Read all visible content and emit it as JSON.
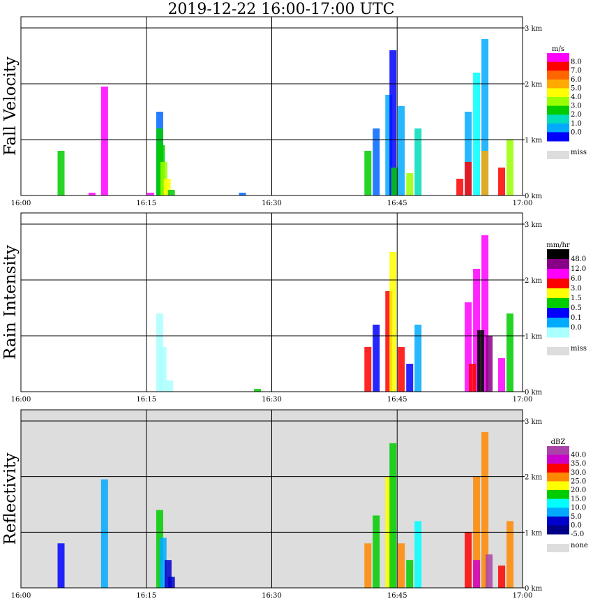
{
  "title": "2019-12-22   16:00-17:00 UTC",
  "chart_data": [
    {
      "type": "heatmap",
      "ylabel": "Fall Velocity",
      "units": "m/s",
      "background": "#ffffff",
      "x_ticks": [
        "16:00",
        "16:15",
        "16:30",
        "16:45",
        "17:00"
      ],
      "y_ticks": [
        "0 km",
        "1 km",
        "2 km",
        "3 km"
      ],
      "xlim": [
        0,
        60
      ],
      "ylim": [
        0,
        3.2
      ],
      "legend": {
        "labels": [
          "8.0",
          "7.0",
          "6.0",
          "5.0",
          "4.0",
          "3.0",
          "2.0",
          "1.0",
          "0.0"
        ],
        "colors": [
          "#ff00ff",
          "#ff0000",
          "#ff6600",
          "#ffaa00",
          "#ffff00",
          "#99ff00",
          "#00cc00",
          "#00ddbb",
          "#00aaff",
          "#0000ff"
        ],
        "missing": "miss"
      },
      "cells": [
        [
          10.0,
          1.95,
          "#ff00ff"
        ],
        [
          4.8,
          0.8,
          "#00cc00"
        ],
        [
          16.6,
          1.5,
          "#0066ff"
        ],
        [
          16.6,
          1.2,
          "#00cc00"
        ],
        [
          16.8,
          0.9,
          "#00cc00"
        ],
        [
          17.1,
          0.6,
          "#99ff00"
        ],
        [
          17.5,
          0.3,
          "#ffff00"
        ],
        [
          18.0,
          0.1,
          "#00cc00"
        ],
        [
          8.5,
          0.05,
          "#ff00ff"
        ],
        [
          15.5,
          0.05,
          "#ff00ff"
        ],
        [
          26.5,
          0.05,
          "#0066ff"
        ],
        [
          41.5,
          0.8,
          "#00cc00"
        ],
        [
          42.5,
          1.2,
          "#0066ff"
        ],
        [
          44.0,
          1.8,
          "#00aaff"
        ],
        [
          44.5,
          2.6,
          "#0000ff"
        ],
        [
          44.7,
          0.5,
          "#00cc00"
        ],
        [
          45.5,
          1.6,
          "#00aaff"
        ],
        [
          46.5,
          0.4,
          "#99ff00"
        ],
        [
          47.5,
          1.2,
          "#00ddbb"
        ],
        [
          52.5,
          0.3,
          "#ff0000"
        ],
        [
          53.5,
          1.5,
          "#00aaff"
        ],
        [
          54.5,
          2.2,
          "#00ffff"
        ],
        [
          55.5,
          2.8,
          "#00aaff"
        ],
        [
          53.5,
          0.6,
          "#ff0000"
        ],
        [
          55.5,
          0.8,
          "#ffaa00"
        ],
        [
          57.5,
          0.5,
          "#ff0000"
        ],
        [
          58.5,
          1.0,
          "#99ff00"
        ]
      ]
    },
    {
      "type": "heatmap",
      "ylabel": "Rain Intensity",
      "units": "mm/hr",
      "background": "#ffffff",
      "x_ticks": [
        "16:00",
        "16:15",
        "16:30",
        "16:45",
        "17:00"
      ],
      "y_ticks": [
        "0 km",
        "1 km",
        "2 km",
        "3 km"
      ],
      "xlim": [
        0,
        60
      ],
      "ylim": [
        0,
        3.2
      ],
      "legend": {
        "labels": [
          "48.0",
          "12.0",
          "6.0",
          "3.0",
          "1.5",
          "0.5",
          "0.1",
          "0.0"
        ],
        "colors": [
          "#000000",
          "#880088",
          "#ff00ff",
          "#ff0000",
          "#ffff00",
          "#00cc00",
          "#0000ff",
          "#00aaff",
          "#aaffff"
        ],
        "missing": "miss"
      },
      "cells": [
        [
          16.6,
          1.4,
          "#aaffff"
        ],
        [
          17.0,
          0.8,
          "#aaffff"
        ],
        [
          17.8,
          0.2,
          "#aaffff"
        ],
        [
          28.3,
          0.05,
          "#00cc00"
        ],
        [
          41.5,
          0.8,
          "#ff0000"
        ],
        [
          42.5,
          1.2,
          "#0000ff"
        ],
        [
          44.0,
          1.8,
          "#ff0000"
        ],
        [
          44.5,
          2.5,
          "#ffff00"
        ],
        [
          45.5,
          0.8,
          "#ff0000"
        ],
        [
          46.5,
          0.5,
          "#0000ff"
        ],
        [
          47.5,
          1.2,
          "#00aaff"
        ],
        [
          53.5,
          1.6,
          "#ff00ff"
        ],
        [
          54.5,
          2.2,
          "#ff00ff"
        ],
        [
          55.5,
          2.8,
          "#ff00ff"
        ],
        [
          55.0,
          1.1,
          "#000000"
        ],
        [
          56.0,
          1.0,
          "#880088"
        ],
        [
          54.0,
          0.5,
          "#ff0000"
        ],
        [
          57.5,
          0.6,
          "#ff00ff"
        ],
        [
          58.5,
          1.4,
          "#00cc00"
        ]
      ]
    },
    {
      "type": "heatmap",
      "ylabel": "Reflectivity",
      "units": "dBZ",
      "background": "#dddddd",
      "x_ticks": [
        "16:00",
        "16:15",
        "16:30",
        "16:45",
        "17:00"
      ],
      "y_ticks": [
        "0 km",
        "1 km",
        "2 km",
        "3 km"
      ],
      "xlim": [
        0,
        60
      ],
      "ylim": [
        0,
        3.2
      ],
      "legend": {
        "labels": [
          "40.0",
          "35.0",
          "30.0",
          "25.0",
          "20.0",
          "15.0",
          "10.0",
          "5.0",
          "0.0",
          "-5.0"
        ],
        "colors": [
          "#aa44aa",
          "#cc00cc",
          "#ff0000",
          "#ff8800",
          "#ffff00",
          "#00cc00",
          "#00ffff",
          "#00aaff",
          "#0000cc",
          "#000088"
        ],
        "missing": "none"
      },
      "cells": [
        [
          10.0,
          1.95,
          "#00aaff"
        ],
        [
          4.8,
          0.8,
          "#0000ff"
        ],
        [
          16.6,
          1.4,
          "#00cc00"
        ],
        [
          17.0,
          0.9,
          "#00aaff"
        ],
        [
          17.6,
          0.5,
          "#0000cc"
        ],
        [
          18.0,
          0.2,
          "#0000cc"
        ],
        [
          41.5,
          0.8,
          "#ff8800"
        ],
        [
          42.5,
          1.3,
          "#00cc00"
        ],
        [
          44.0,
          2.0,
          "#ffff00"
        ],
        [
          44.5,
          2.6,
          "#00cc00"
        ],
        [
          45.5,
          0.8,
          "#ff8800"
        ],
        [
          46.5,
          0.5,
          "#00cc00"
        ],
        [
          47.5,
          1.2,
          "#00ffff"
        ],
        [
          53.5,
          1.0,
          "#ff0000"
        ],
        [
          54.5,
          2.0,
          "#ff8800"
        ],
        [
          55.5,
          2.8,
          "#ff8800"
        ],
        [
          54.5,
          0.5,
          "#cc00cc"
        ],
        [
          56.0,
          0.6,
          "#aa44aa"
        ],
        [
          57.5,
          0.4,
          "#ff0000"
        ],
        [
          58.5,
          1.2,
          "#ff8800"
        ]
      ]
    }
  ]
}
